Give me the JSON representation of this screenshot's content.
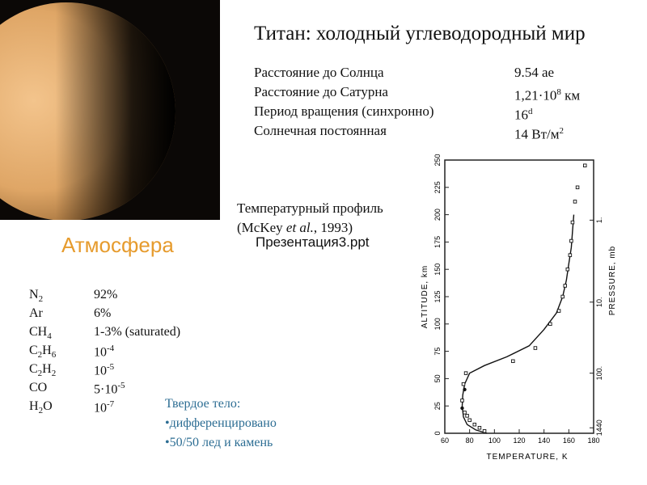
{
  "title": "Титан: холодный углеводородный мир",
  "facts": [
    {
      "label": "Расстояние до Солнца",
      "value": "9.54 ае"
    },
    {
      "label": "Расстояние до Сатурна",
      "value_prefix": "1,21·10",
      "value_sup": "8",
      "value_suffix": " км"
    },
    {
      "label": "Период вращения (синхронно)",
      "value_prefix": "16",
      "value_sup": "d",
      "value_suffix": ""
    },
    {
      "label": "Солнечная постоянная",
      "value_prefix": "14 Вт/м",
      "value_sup": "2",
      "value_suffix": ""
    }
  ],
  "temp_caption": {
    "line1": "Температурный профиль",
    "line2_pre": "(McKey ",
    "line2_em": "et al.",
    "line2_post": ", 1993)"
  },
  "presentation_link": "Презентация3.ppt",
  "atmosphere_title": "Атмосфера",
  "composition": [
    {
      "gas": "N",
      "gas_sub": "2",
      "gas_tail": "",
      "value": "92%",
      "exp": ""
    },
    {
      "gas": "Ar",
      "gas_sub": "",
      "gas_tail": "",
      "value": "6%",
      "exp": ""
    },
    {
      "gas": "CH",
      "gas_sub": "4",
      "gas_tail": "",
      "value": "1-3% (saturated)",
      "exp": ""
    },
    {
      "gas": "C",
      "gas_sub": "2",
      "gas_tail": "H",
      "gas_sub2": "6",
      "value": "10",
      "exp": "-4"
    },
    {
      "gas": "C",
      "gas_sub": "2",
      "gas_tail": "H",
      "gas_sub2": "2",
      "value": "10",
      "exp": "-5"
    },
    {
      "gas": "CO",
      "gas_sub": "",
      "gas_tail": "",
      "value": "5·10",
      "exp": "-5"
    },
    {
      "gas": "H",
      "gas_sub": "2",
      "gas_tail": "O",
      "value": "10",
      "exp": "-7"
    }
  ],
  "solid_body": {
    "heading": "Твердое тело:",
    "items": [
      "•дифференцировано",
      "•50/50 лед и камень"
    ]
  },
  "chart_data": {
    "type": "line",
    "xlabel": "TEMPERATURE, K",
    "ylabel": "ALTITUDE, km",
    "y2label": "PRESSURE, mb",
    "x_ticks": [
      "60",
      "80",
      "100",
      "120",
      "140",
      "160",
      "180"
    ],
    "y_ticks": [
      "0",
      "25",
      "50",
      "75",
      "100",
      "125",
      "150",
      "175",
      "200",
      "225",
      "250"
    ],
    "pressure_ticks": [
      "1.",
      "10.",
      "100.",
      "1440"
    ],
    "xlim": [
      60,
      180
    ],
    "ylim": [
      0,
      250
    ],
    "line": {
      "x": [
        94,
        85,
        78,
        75,
        74,
        74.5,
        76,
        80,
        92,
        110,
        128,
        140,
        150,
        155,
        158,
        160,
        162,
        163,
        164
      ],
      "y": [
        0,
        3,
        8,
        15,
        25,
        35,
        45,
        55,
        62,
        70,
        80,
        95,
        110,
        125,
        140,
        155,
        170,
        185,
        200
      ]
    },
    "points_open": {
      "x": [
        92,
        88,
        84,
        80,
        78,
        76,
        74,
        75,
        77,
        115,
        133,
        145,
        152,
        155,
        157,
        159,
        161,
        162,
        163,
        165,
        167,
        173
      ],
      "y": [
        2,
        5,
        8,
        12,
        16,
        19,
        30,
        45,
        55,
        66,
        78,
        100,
        112,
        125,
        135,
        150,
        163,
        176,
        193,
        212,
        225,
        245
      ]
    },
    "points_filled": {
      "x": [
        74,
        76
      ],
      "y": [
        23,
        40
      ]
    }
  },
  "colors": {
    "accent_orange": "#e69b2d",
    "solid_text": "#2c6d93",
    "titan_light": "#f0b978",
    "titan_dark": "#3a2410"
  }
}
